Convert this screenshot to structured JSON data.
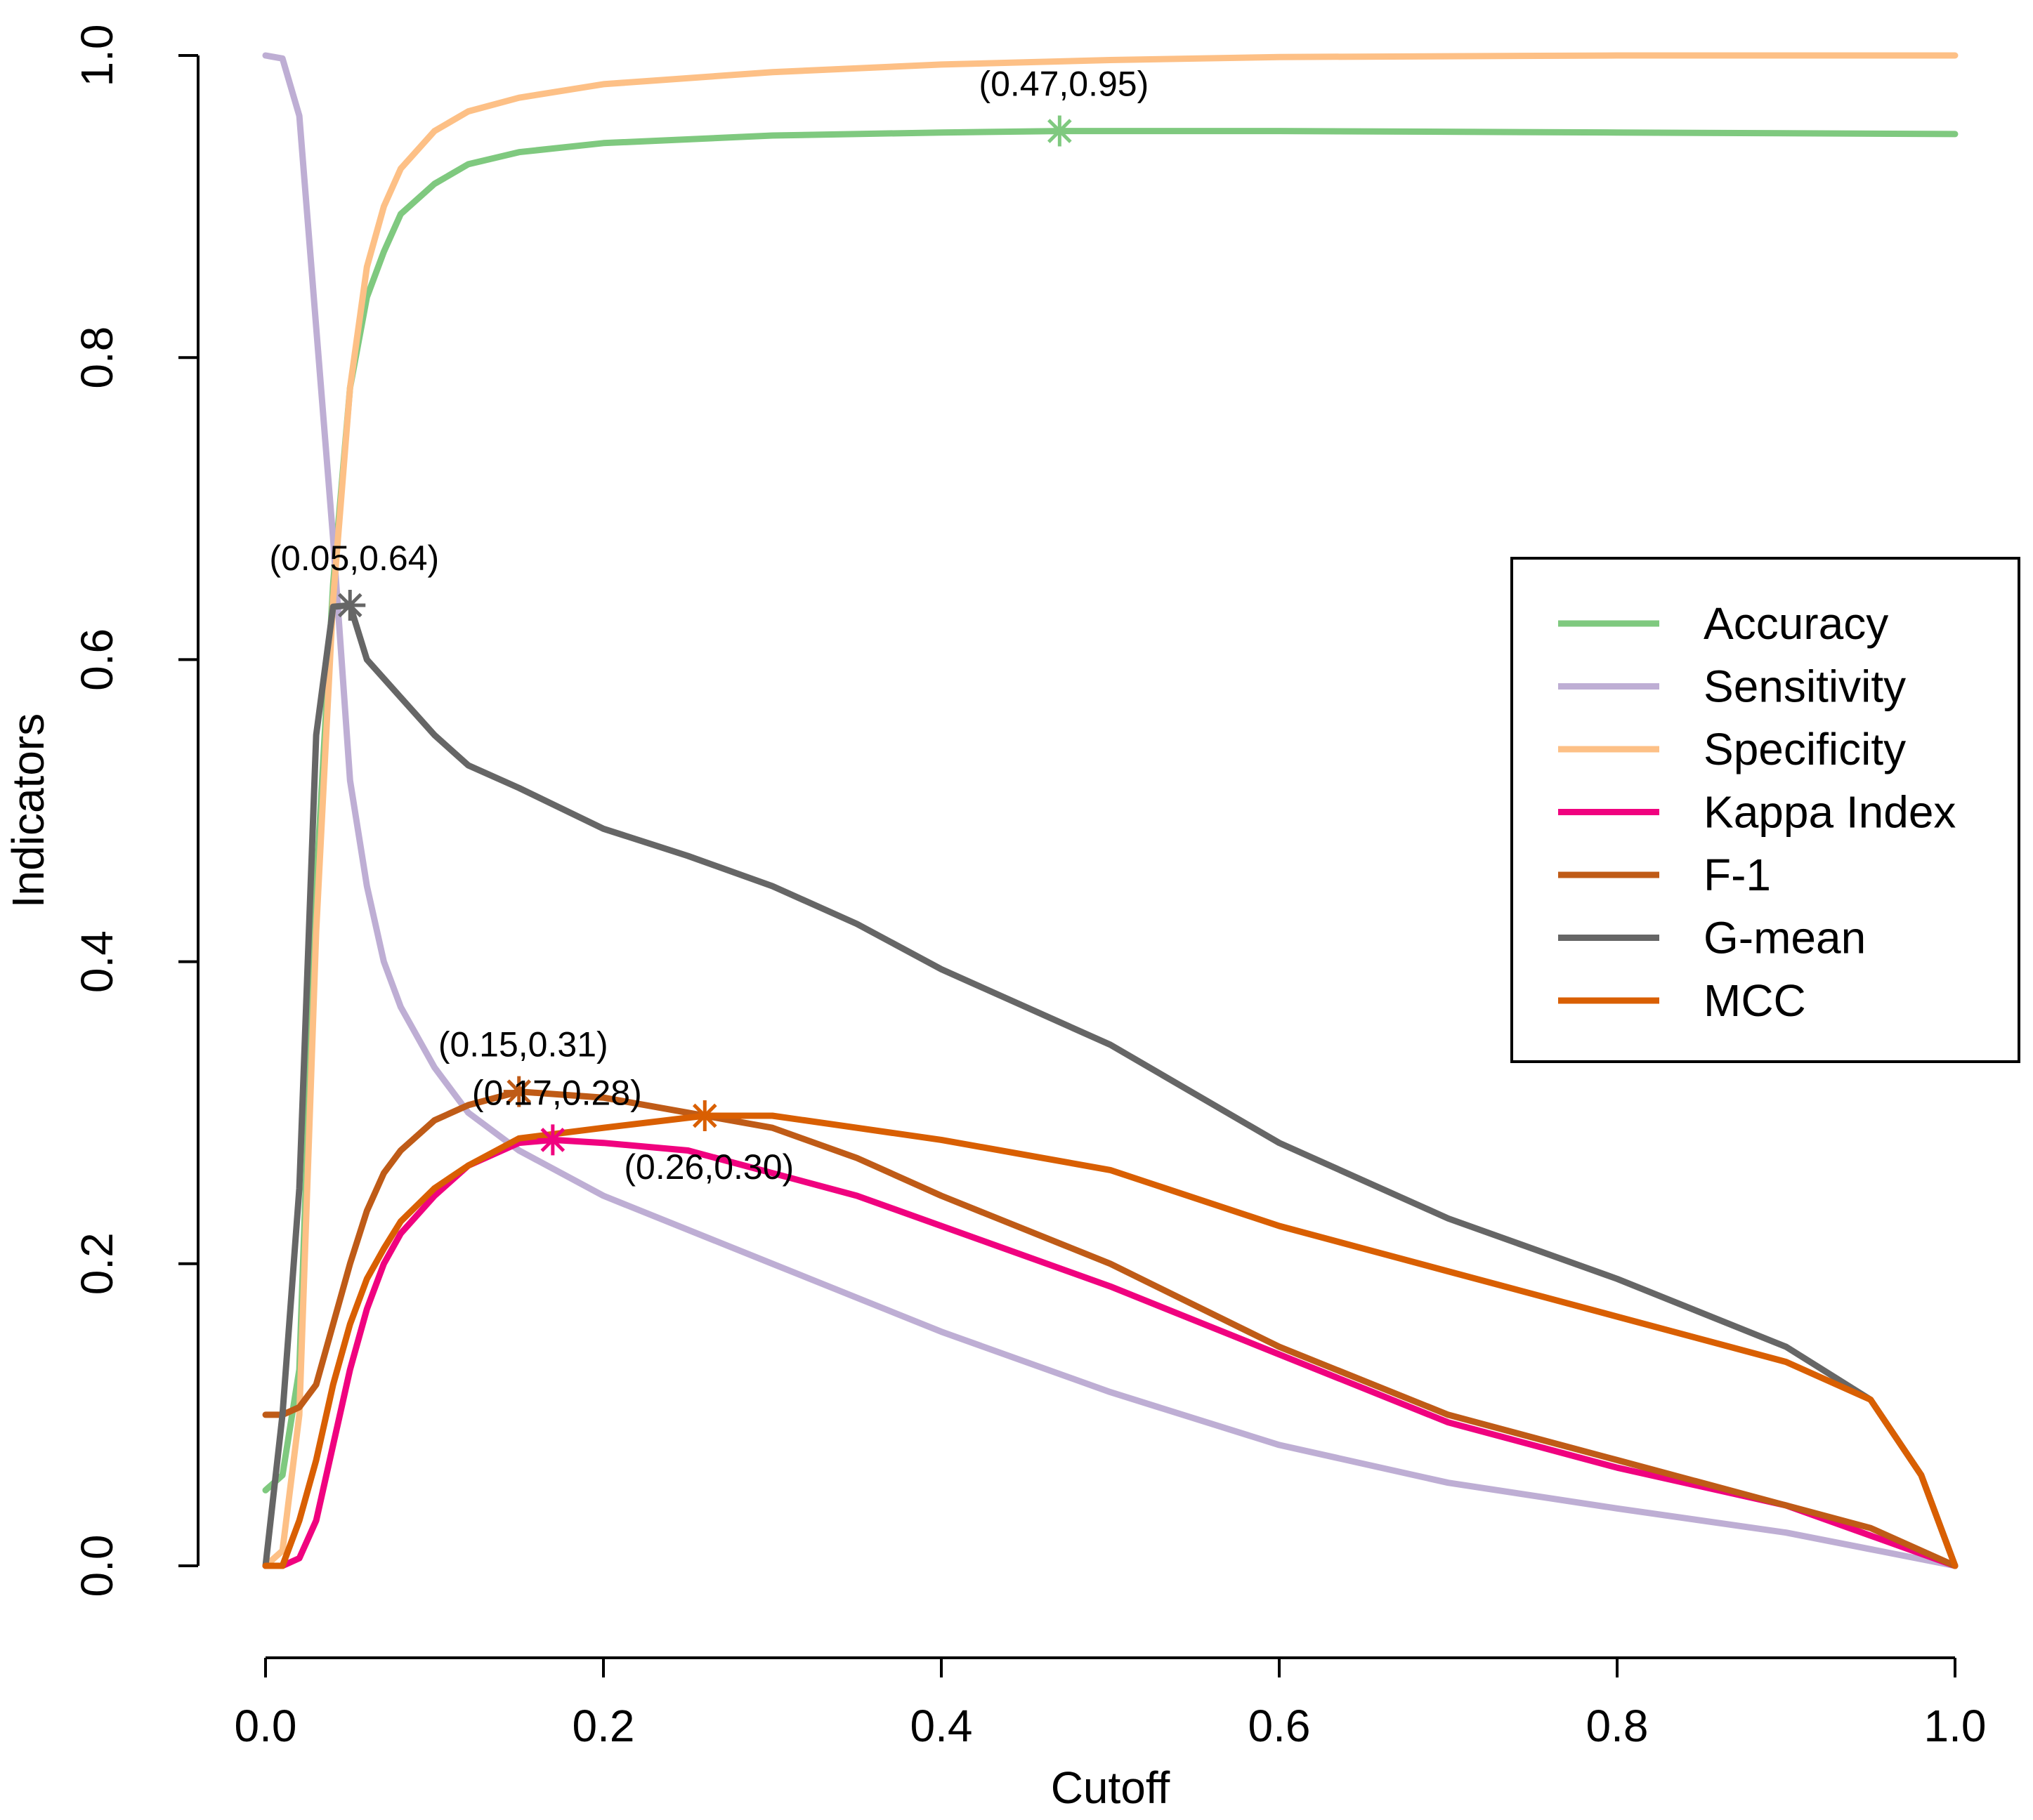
{
  "chart_data": {
    "type": "line",
    "title": "",
    "xlabel": "Cutoff",
    "ylabel": "Indicators",
    "xlim": [
      0,
      1
    ],
    "ylim": [
      0,
      1
    ],
    "x_ticks": [
      0.0,
      0.2,
      0.4,
      0.6,
      0.8,
      1.0
    ],
    "x_tick_labels": [
      "0.0",
      "0.2",
      "0.4",
      "0.6",
      "0.8",
      "1.0"
    ],
    "y_ticks": [
      0.0,
      0.2,
      0.4,
      0.6,
      0.8,
      1.0
    ],
    "y_tick_labels": [
      "0.0",
      "0.2",
      "0.4",
      "0.6",
      "0.8",
      "1.0"
    ],
    "grid": false,
    "legend_position": "right",
    "series": [
      {
        "name": "Accuracy",
        "color": "#7FC97F",
        "points": [
          [
            0,
            0.05
          ],
          [
            0.01,
            0.06
          ],
          [
            0.02,
            0.13
          ],
          [
            0.03,
            0.45
          ],
          [
            0.04,
            0.65
          ],
          [
            0.05,
            0.78
          ],
          [
            0.06,
            0.84
          ],
          [
            0.07,
            0.87
          ],
          [
            0.08,
            0.895
          ],
          [
            0.1,
            0.915
          ],
          [
            0.12,
            0.928
          ],
          [
            0.15,
            0.936
          ],
          [
            0.2,
            0.942
          ],
          [
            0.3,
            0.947
          ],
          [
            0.4,
            0.949
          ],
          [
            0.47,
            0.95
          ],
          [
            0.6,
            0.95
          ],
          [
            0.8,
            0.949
          ],
          [
            1.0,
            0.948
          ]
        ]
      },
      {
        "name": "Sensitivity",
        "color": "#BEAED4",
        "points": [
          [
            0,
            1.0
          ],
          [
            0.01,
            0.998
          ],
          [
            0.02,
            0.96
          ],
          [
            0.03,
            0.82
          ],
          [
            0.04,
            0.68
          ],
          [
            0.05,
            0.52
          ],
          [
            0.06,
            0.45
          ],
          [
            0.07,
            0.4
          ],
          [
            0.08,
            0.37
          ],
          [
            0.1,
            0.33
          ],
          [
            0.12,
            0.3
          ],
          [
            0.15,
            0.275
          ],
          [
            0.2,
            0.245
          ],
          [
            0.3,
            0.2
          ],
          [
            0.4,
            0.155
          ],
          [
            0.5,
            0.115
          ],
          [
            0.6,
            0.08
          ],
          [
            0.7,
            0.055
          ],
          [
            0.8,
            0.038
          ],
          [
            0.9,
            0.022
          ],
          [
            1.0,
            0.0
          ]
        ]
      },
      {
        "name": "Specificity",
        "color": "#FDC086",
        "points": [
          [
            0,
            0.0
          ],
          [
            0.01,
            0.01
          ],
          [
            0.02,
            0.1
          ],
          [
            0.03,
            0.42
          ],
          [
            0.04,
            0.64
          ],
          [
            0.05,
            0.78
          ],
          [
            0.06,
            0.86
          ],
          [
            0.07,
            0.9
          ],
          [
            0.08,
            0.925
          ],
          [
            0.1,
            0.95
          ],
          [
            0.12,
            0.963
          ],
          [
            0.15,
            0.972
          ],
          [
            0.2,
            0.981
          ],
          [
            0.3,
            0.989
          ],
          [
            0.4,
            0.994
          ],
          [
            0.5,
            0.997
          ],
          [
            0.6,
            0.999
          ],
          [
            0.8,
            1.0
          ],
          [
            1.0,
            1.0
          ]
        ]
      },
      {
        "name": "Kappa Index",
        "color": "#F0027F",
        "points": [
          [
            0,
            0.0
          ],
          [
            0.01,
            0.0
          ],
          [
            0.02,
            0.005
          ],
          [
            0.03,
            0.03
          ],
          [
            0.04,
            0.08
          ],
          [
            0.05,
            0.13
          ],
          [
            0.06,
            0.17
          ],
          [
            0.07,
            0.2
          ],
          [
            0.08,
            0.22
          ],
          [
            0.1,
            0.245
          ],
          [
            0.12,
            0.265
          ],
          [
            0.15,
            0.28
          ],
          [
            0.17,
            0.282
          ],
          [
            0.2,
            0.28
          ],
          [
            0.25,
            0.275
          ],
          [
            0.3,
            0.26
          ],
          [
            0.35,
            0.245
          ],
          [
            0.4,
            0.225
          ],
          [
            0.5,
            0.185
          ],
          [
            0.6,
            0.14
          ],
          [
            0.7,
            0.095
          ],
          [
            0.8,
            0.065
          ],
          [
            0.9,
            0.04
          ],
          [
            0.95,
            0.02
          ],
          [
            1.0,
            0.0
          ]
        ]
      },
      {
        "name": "F-1",
        "color": "#BF5B17",
        "points": [
          [
            0,
            0.1
          ],
          [
            0.01,
            0.1
          ],
          [
            0.02,
            0.105
          ],
          [
            0.03,
            0.12
          ],
          [
            0.04,
            0.16
          ],
          [
            0.05,
            0.2
          ],
          [
            0.06,
            0.235
          ],
          [
            0.07,
            0.26
          ],
          [
            0.08,
            0.275
          ],
          [
            0.1,
            0.295
          ],
          [
            0.12,
            0.305
          ],
          [
            0.15,
            0.314
          ],
          [
            0.2,
            0.31
          ],
          [
            0.25,
            0.3
          ],
          [
            0.3,
            0.29
          ],
          [
            0.35,
            0.27
          ],
          [
            0.4,
            0.245
          ],
          [
            0.5,
            0.2
          ],
          [
            0.6,
            0.145
          ],
          [
            0.7,
            0.1
          ],
          [
            0.8,
            0.07
          ],
          [
            0.9,
            0.04
          ],
          [
            0.95,
            0.025
          ],
          [
            1.0,
            0.0
          ]
        ]
      },
      {
        "name": "G-mean",
        "color": "#666666",
        "points": [
          [
            0,
            0.0
          ],
          [
            0.01,
            0.1
          ],
          [
            0.02,
            0.25
          ],
          [
            0.03,
            0.55
          ],
          [
            0.04,
            0.635
          ],
          [
            0.05,
            0.636
          ],
          [
            0.06,
            0.6
          ],
          [
            0.08,
            0.575
          ],
          [
            0.1,
            0.55
          ],
          [
            0.12,
            0.53
          ],
          [
            0.15,
            0.515
          ],
          [
            0.2,
            0.488
          ],
          [
            0.25,
            0.47
          ],
          [
            0.3,
            0.45
          ],
          [
            0.35,
            0.425
          ],
          [
            0.4,
            0.395
          ],
          [
            0.5,
            0.345
          ],
          [
            0.6,
            0.28
          ],
          [
            0.7,
            0.23
          ],
          [
            0.8,
            0.19
          ],
          [
            0.9,
            0.145
          ],
          [
            0.95,
            0.11
          ],
          [
            0.98,
            0.06
          ],
          [
            1.0,
            0.0
          ]
        ]
      },
      {
        "name": "MCC",
        "color": "#D95F02",
        "points": [
          [
            0,
            0.0
          ],
          [
            0.01,
            0.0
          ],
          [
            0.02,
            0.03
          ],
          [
            0.03,
            0.07
          ],
          [
            0.04,
            0.12
          ],
          [
            0.05,
            0.16
          ],
          [
            0.06,
            0.19
          ],
          [
            0.07,
            0.21
          ],
          [
            0.08,
            0.228
          ],
          [
            0.1,
            0.25
          ],
          [
            0.12,
            0.265
          ],
          [
            0.15,
            0.283
          ],
          [
            0.2,
            0.29
          ],
          [
            0.26,
            0.298
          ],
          [
            0.3,
            0.298
          ],
          [
            0.35,
            0.29
          ],
          [
            0.4,
            0.282
          ],
          [
            0.5,
            0.262
          ],
          [
            0.6,
            0.225
          ],
          [
            0.7,
            0.195
          ],
          [
            0.8,
            0.165
          ],
          [
            0.9,
            0.135
          ],
          [
            0.95,
            0.11
          ],
          [
            0.98,
            0.06
          ],
          [
            1.0,
            0.0
          ]
        ]
      }
    ],
    "annotations": [
      {
        "series": "Accuracy",
        "x": 0.47,
        "y": 0.95,
        "label": "(0.47,0.95)",
        "color": "#7FC97F",
        "pos": "above"
      },
      {
        "series": "G-mean",
        "x": 0.05,
        "y": 0.636,
        "label": "(0.05,0.64)",
        "color": "#666666",
        "pos": "above"
      },
      {
        "series": "F-1",
        "x": 0.15,
        "y": 0.314,
        "label": "(0.15,0.31)",
        "color": "#BF5B17",
        "pos": "above"
      },
      {
        "series": "Kappa Index",
        "x": 0.17,
        "y": 0.282,
        "label": "(0.17,0.28)",
        "color": "#F0027F",
        "pos": "above"
      },
      {
        "series": "MCC",
        "x": 0.26,
        "y": 0.298,
        "label": "(0.26,0.30)",
        "color": "#D95F02",
        "pos": "below"
      }
    ]
  }
}
